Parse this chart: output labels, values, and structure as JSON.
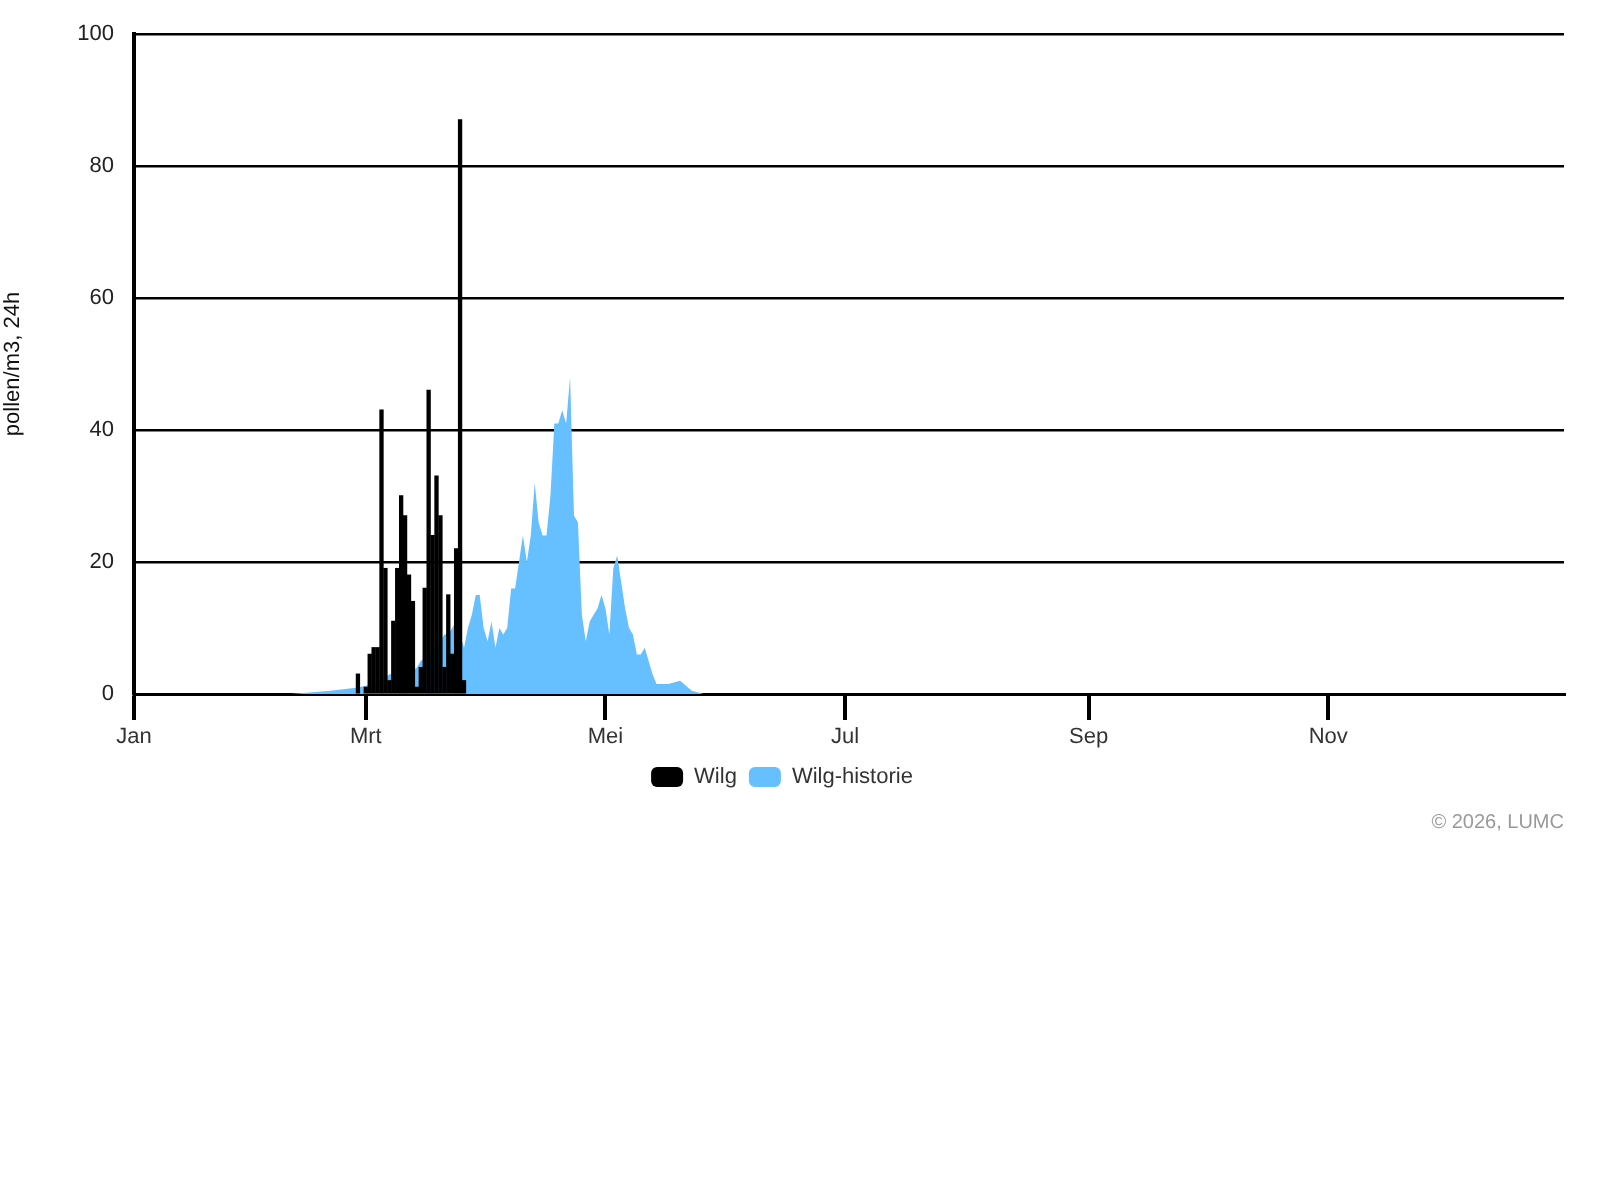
{
  "chart_data": {
    "type": "bar",
    "ylabel": "pollen/m3, 24h",
    "annotations": [
      "© 2026, LUMC"
    ],
    "xlim": [
      "--01-01",
      "--12-31"
    ],
    "xticks": [
      {
        "value": "--01-01",
        "label": "Jan"
      },
      {
        "value": "--03-01",
        "label": "Mrt"
      },
      {
        "value": "--05-01",
        "label": "Mei"
      },
      {
        "value": "--07-01",
        "label": "Jul"
      },
      {
        "value": "--09-01",
        "label": "Sep"
      },
      {
        "value": "--11-01",
        "label": "Nov"
      }
    ],
    "ylim": [
      0,
      100
    ],
    "yticks": [
      0,
      20,
      40,
      60,
      80,
      100
    ],
    "grid": "y",
    "legend": "bottom",
    "series": [
      {
        "name": "Wilg",
        "color": "#000000",
        "x": [
          "--02-27",
          "--03-01",
          "--03-02",
          "--03-03",
          "--03-04",
          "--03-05",
          "--03-06",
          "--03-07",
          "--03-08",
          "--03-09",
          "--03-10",
          "--03-11",
          "--03-12",
          "--03-13",
          "--03-14",
          "--03-15",
          "--03-16",
          "--03-17",
          "--03-18",
          "--03-19",
          "--03-20",
          "--03-21",
          "--03-22",
          "--03-23",
          "--03-24",
          "--03-25",
          "--03-26"
        ],
        "values": [
          3,
          1,
          6,
          7,
          7,
          43,
          19,
          2,
          11,
          19,
          30,
          27,
          18,
          14,
          1,
          4,
          16,
          46,
          24,
          33,
          27,
          4,
          15,
          6,
          22,
          87,
          2
        ]
      },
      {
        "name": "Wilg-historie",
        "type": "area",
        "color": "#66bfff",
        "x": [
          "--02-10",
          "--02-20",
          "--02-27",
          "--03-03",
          "--03-06",
          "--03-07",
          "--03-12",
          "--03-14",
          "--03-15",
          "--03-17",
          "--03-19",
          "--03-20",
          "--03-21",
          "--03-22",
          "--03-23",
          "--03-24",
          "--03-25",
          "--03-26",
          "--03-27",
          "--03-28",
          "--03-29",
          "--03-30",
          "--03-31",
          "--04-01",
          "--04-02",
          "--04-03",
          "--04-04",
          "--04-05",
          "--04-06",
          "--04-07",
          "--04-08",
          "--04-09",
          "--04-10",
          "--04-11",
          "--04-12",
          "--04-13",
          "--04-14",
          "--04-15",
          "--04-16",
          "--04-17",
          "--04-18",
          "--04-19",
          "--04-20",
          "--04-21",
          "--04-22",
          "--04-23",
          "--04-24",
          "--04-25",
          "--04-26",
          "--04-27",
          "--04-28",
          "--04-29",
          "--04-30",
          "--05-01",
          "--05-02",
          "--05-03",
          "--05-04",
          "--05-05",
          "--05-06",
          "--05-07",
          "--05-08",
          "--05-09",
          "--05-10",
          "--05-11",
          "--05-12",
          "--05-13",
          "--05-14",
          "--05-17",
          "--05-20",
          "--05-21",
          "--05-22",
          "--05-23",
          "--05-26"
        ],
        "values": [
          0,
          0.5,
          1,
          1.5,
          2.5,
          3,
          3,
          4,
          5,
          6,
          7,
          8,
          9,
          9,
          10,
          11,
          9,
          7,
          10,
          12,
          15,
          15,
          10,
          8,
          11,
          7,
          10,
          9,
          10,
          16,
          16,
          20,
          24,
          20,
          24,
          32,
          26,
          24,
          24,
          30,
          41,
          41,
          43,
          41,
          48,
          27,
          26,
          12,
          8,
          11,
          12,
          13,
          15,
          13,
          9,
          19,
          21,
          17,
          13,
          10,
          9,
          6,
          6,
          7,
          5,
          3,
          1.5,
          1.5,
          2,
          1.5,
          1,
          0.5,
          0
        ]
      }
    ]
  }
}
